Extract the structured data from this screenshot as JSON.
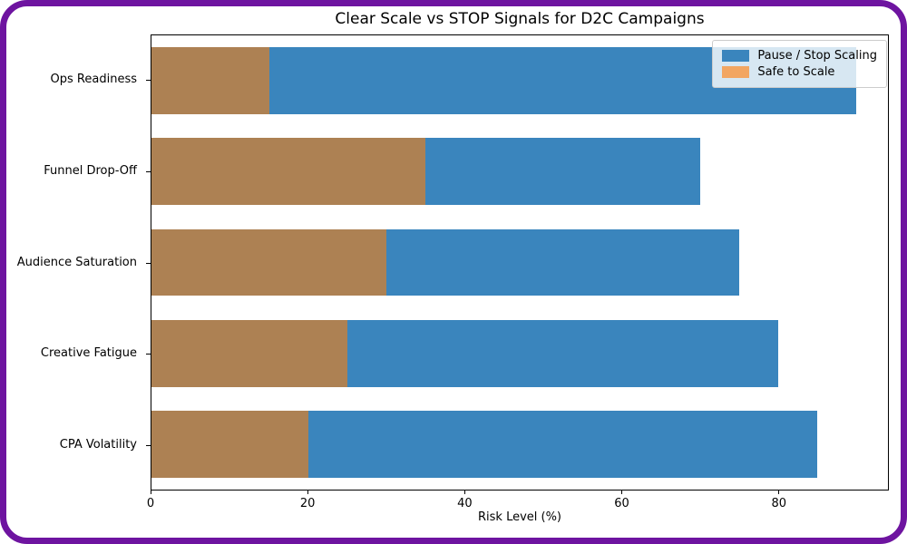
{
  "frame": {
    "border_color": "#6e14a0",
    "background": "#ffffff"
  },
  "chart_data": {
    "type": "bar",
    "orientation": "horizontal",
    "title": "Clear Scale vs STOP Signals for D2C Campaigns",
    "xlabel": "Risk Level (%)",
    "ylabel": "",
    "categories": [
      "Ops Readiness",
      "Funnel Drop-Off",
      "Audience Saturation",
      "Creative Fatigue",
      "CPA Volatility"
    ],
    "series": [
      {
        "name": "Pause / Stop Scaling",
        "color": "#3a85bd",
        "values": [
          90,
          70,
          75,
          80,
          85
        ]
      },
      {
        "name": "Safe to Scale",
        "color": "#f2a662",
        "rendered_overlap_color": "#ad8153",
        "values": [
          15,
          35,
          30,
          25,
          20
        ]
      }
    ],
    "xlim": [
      0,
      94
    ],
    "xticks": [
      0,
      20,
      40,
      60,
      80
    ],
    "grid": false,
    "legend_position": "upper right",
    "spine_color": "#000000"
  },
  "legend": {
    "items": [
      {
        "label": "Pause / Stop Scaling",
        "color": "#3a85bd"
      },
      {
        "label": "Safe to Scale",
        "color": "#f2a662"
      }
    ]
  }
}
